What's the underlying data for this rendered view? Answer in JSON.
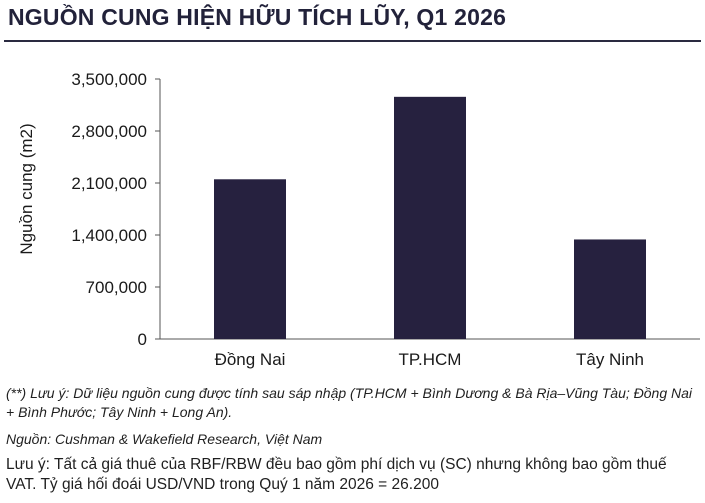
{
  "title": "NGUỒN CUNG HIỆN HỮU TÍCH LŨY, Q1 2026",
  "colors": {
    "bar": "#26213f",
    "axis": "#555555",
    "title": "#22223a"
  },
  "chart_data": {
    "type": "bar",
    "title": "",
    "xlabel": "",
    "ylabel": "Nguồn cung (m2)",
    "categories": [
      "Đồng Nai",
      "TP.HCM",
      "Tây Ninh"
    ],
    "values": [
      2150000,
      3260000,
      1340000
    ],
    "ylim": [
      0,
      3500000
    ],
    "yticks": [
      0,
      700000,
      1400000,
      2100000,
      2800000,
      3500000
    ],
    "ytick_labels": [
      "0",
      "700,000",
      "1,400,000",
      "2,100,000",
      "2,800,000",
      "3,500,000"
    ],
    "grid": false,
    "legend": "none"
  },
  "notes": {
    "definition": "(**) Lưu ý: Dữ liệu nguồn cung được tính sau sáp nhập (TP.HCM + Bình Dương & Bà Rịa–Vũng Tàu; Đồng Nai + Bình Phước; Tây Ninh + Long An).",
    "source": "Nguồn: Cushman & Wakefield Research, Việt Nam",
    "disclaimer": "Lưu ý: Tất cả giá thuê của RBF/RBW đều bao gồm phí dịch vụ (SC) nhưng không bao gồm thuế VAT. Tỷ giá hối đoái USD/VND trong Quý 1 năm 2026 = 26.200"
  }
}
